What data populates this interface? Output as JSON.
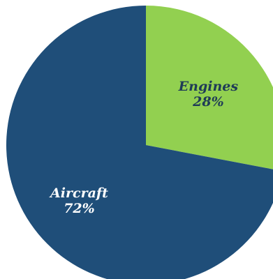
{
  "chart_data": {
    "type": "pie",
    "start_angle_deg": 0,
    "direction": "clockwise",
    "slices": [
      {
        "label": "Engines",
        "value": 28,
        "value_label": "28%",
        "color": "#92d050",
        "text_color": "#1f3b57"
      },
      {
        "label": "Aircraft",
        "value": 72,
        "value_label": "72%",
        "color": "#1f4e79",
        "text_color": "#ffffff"
      }
    ]
  }
}
